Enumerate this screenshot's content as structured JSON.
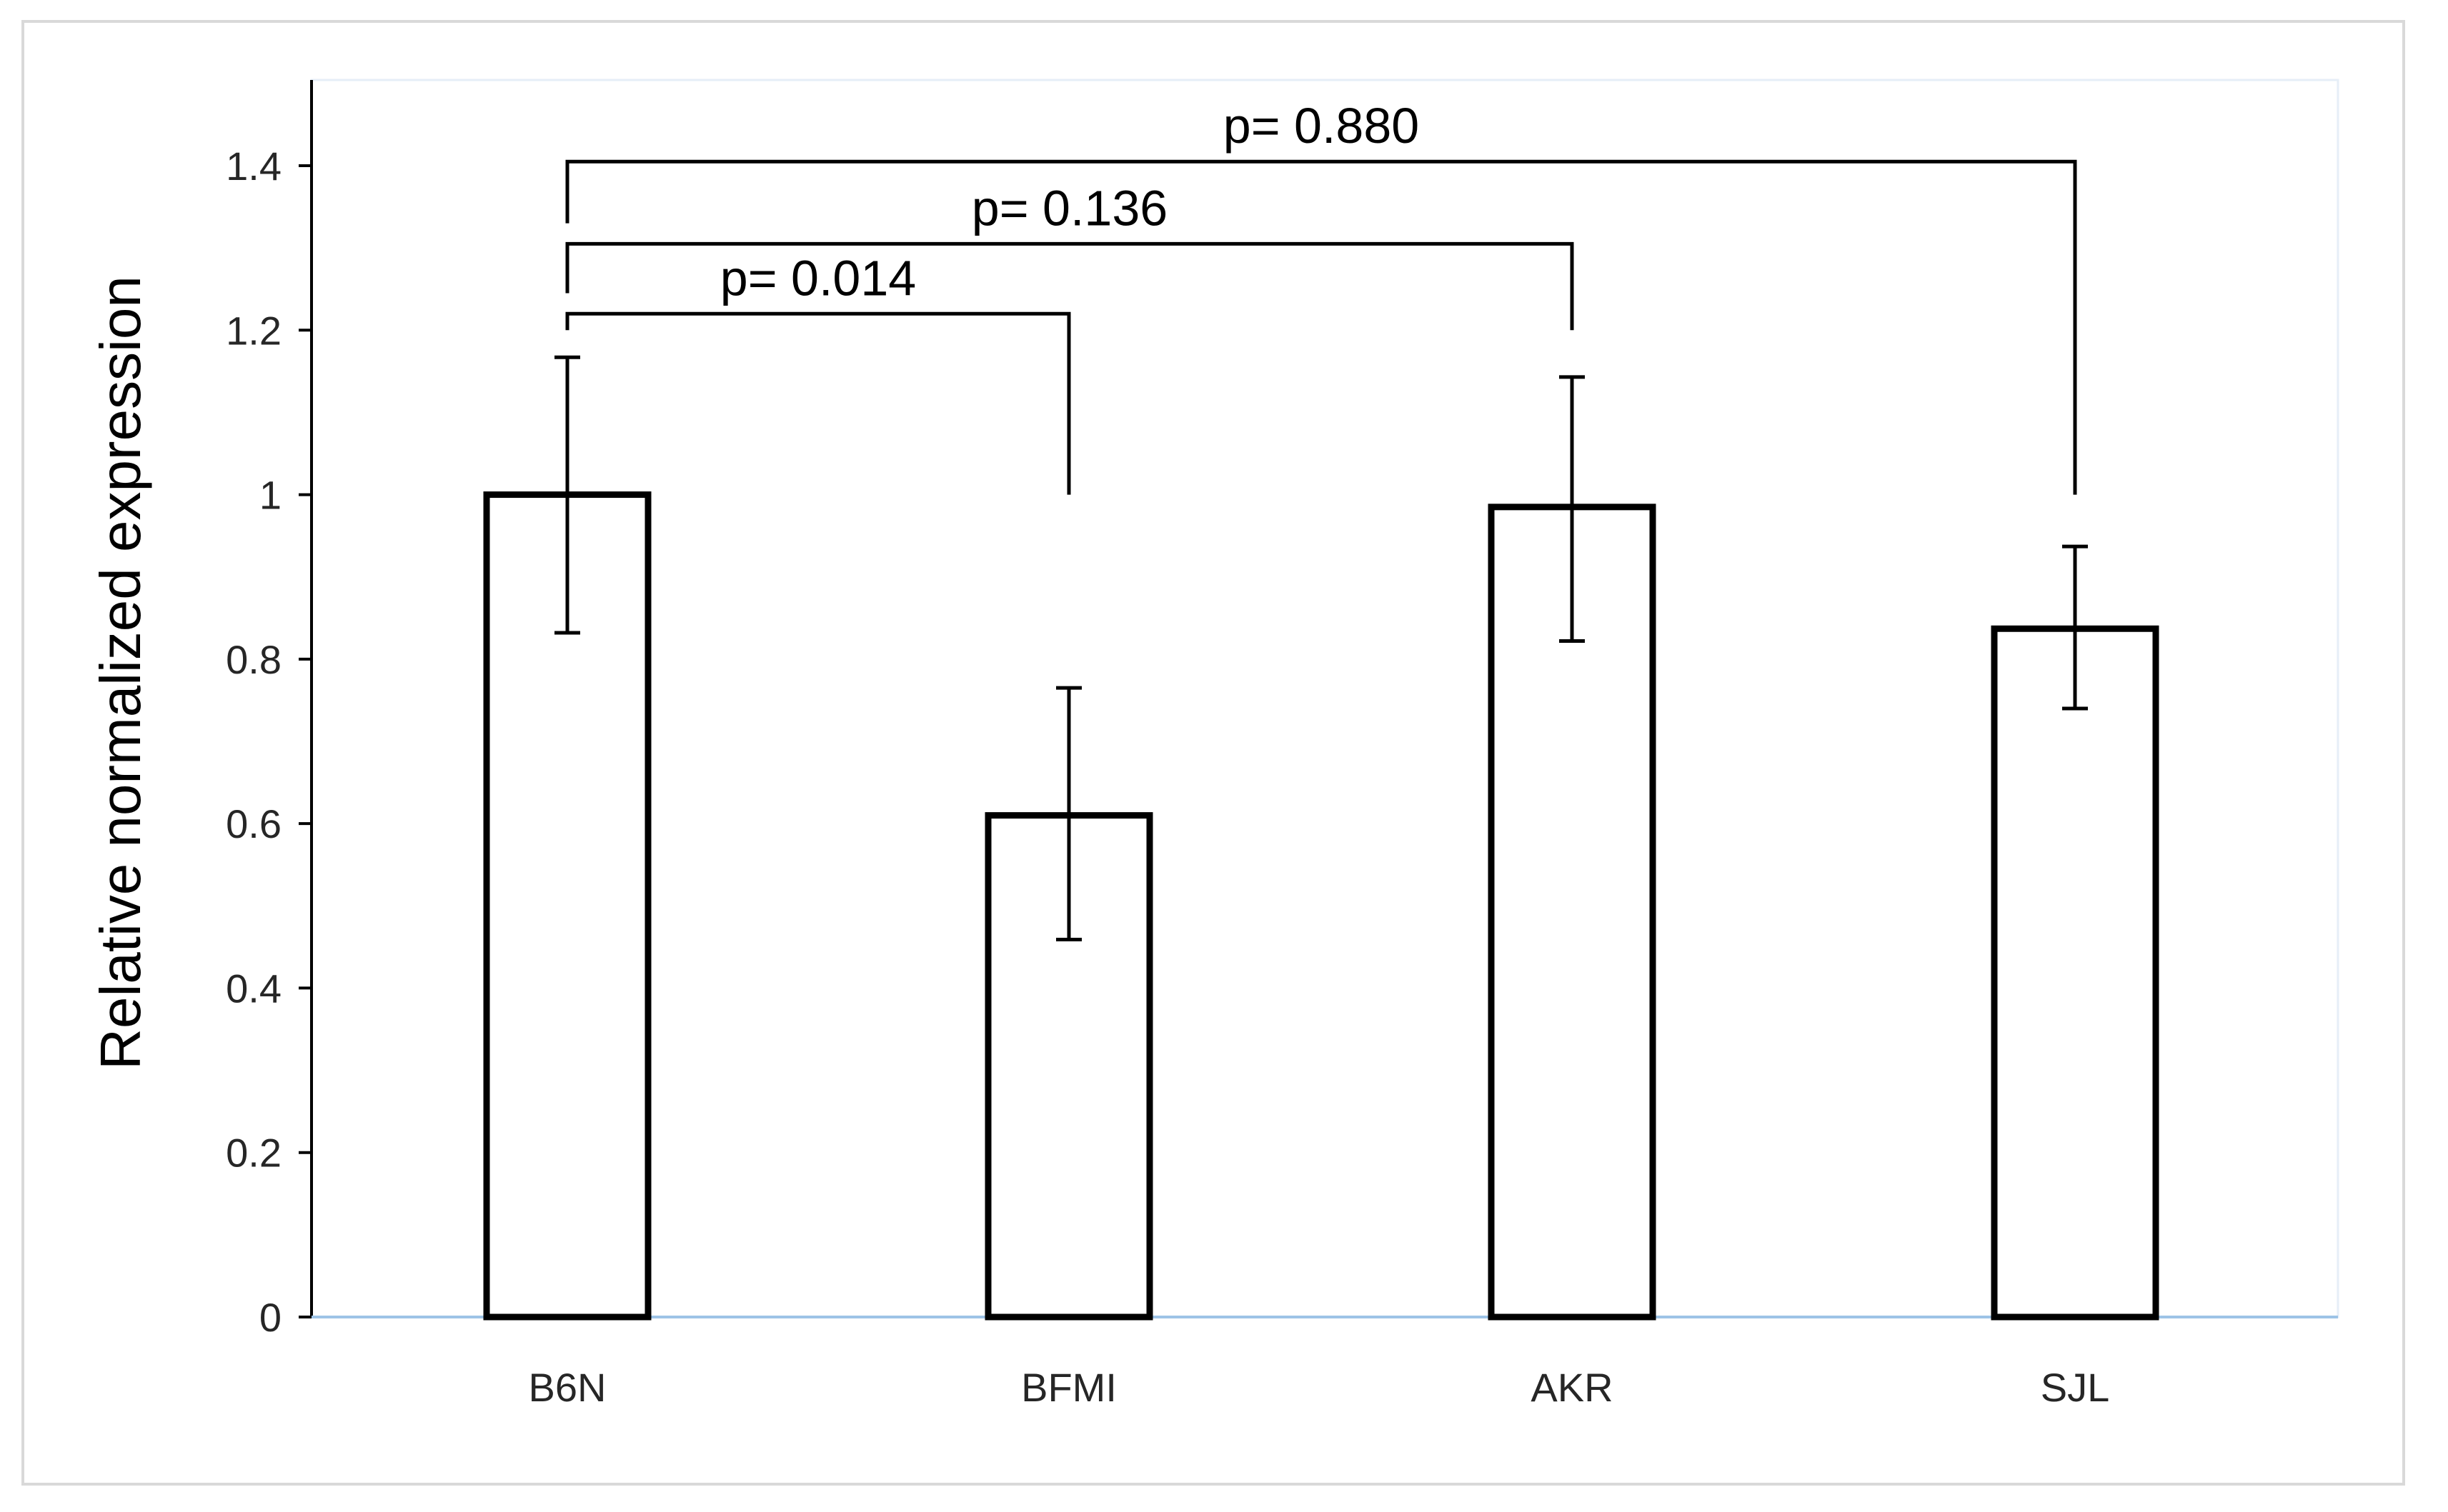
{
  "chart_data": {
    "type": "bar",
    "categories": [
      "B6N",
      "BFMI",
      "AKR",
      "SJL"
    ],
    "values": [
      1.0,
      0.61,
      0.985,
      0.837
    ],
    "error_upper": [
      1.167,
      0.765,
      1.143,
      0.937
    ],
    "error_lower": [
      0.832,
      0.459,
      0.822,
      0.74
    ],
    "title": "",
    "xlabel": "",
    "ylabel": "Relative normalized expression",
    "ylim": [
      0,
      1.5
    ],
    "yticks": [
      0,
      0.2,
      0.4,
      0.6,
      0.8,
      1,
      1.2,
      1.4
    ],
    "ytick_labels": [
      "0",
      "0.2",
      "0.4",
      "0.6",
      "0.8",
      "1",
      "1.2",
      "1.4"
    ],
    "grid": false,
    "legend": "none",
    "bar_fill": "#ffffff",
    "bar_edge": "#000000",
    "axis_color": "#9dc3e6",
    "annotations": [
      {
        "from": 0,
        "to": 1,
        "text": "p= 0.014",
        "bracket_y": 1.22,
        "right_drop_to": 1.0,
        "left_drop_to": 1.2
      },
      {
        "from": 0,
        "to": 2,
        "text": "p= 0.136",
        "bracket_y": 1.305,
        "right_drop_to": 1.2,
        "left_drop_to": 1.245
      },
      {
        "from": 0,
        "to": 3,
        "text": "p= 0.880",
        "bracket_y": 1.405,
        "right_drop_to": 1.0,
        "left_drop_to": 1.33
      }
    ]
  }
}
